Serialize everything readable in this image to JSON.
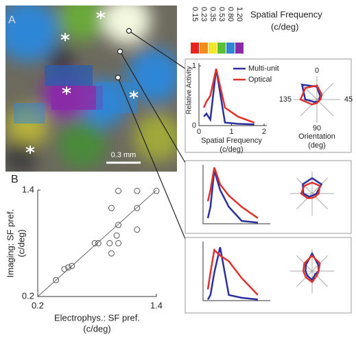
{
  "panel_a": {
    "label": "A",
    "scale_bar": "0.3 mm",
    "colorbar": {
      "title": [
        "Spatial Frequency",
        "(c/deg)"
      ],
      "items": [
        {
          "label": "0.15",
          "color": "#e8231e"
        },
        {
          "label": "0.23",
          "color": "#f28a1e"
        },
        {
          "label": "0.35",
          "color": "#f4e62a"
        },
        {
          "label": "0.53",
          "color": "#5cbf3a"
        },
        {
          "label": "0.80",
          "color": "#2f86d6"
        },
        {
          "label": "1.20",
          "color": "#8a2aa8"
        }
      ]
    }
  },
  "chart_data": [
    {
      "type": "line",
      "ylabel": "Relative Activity",
      "xlabel": [
        "Spatial Frequency",
        "(c/deg)"
      ],
      "x": [
        0.15,
        0.23,
        0.35,
        0.53,
        0.8,
        1.2,
        1.7
      ],
      "xlim": [
        0,
        2
      ],
      "ylim": [
        0,
        1
      ],
      "xticks": [
        0,
        1,
        2
      ],
      "yticks": [
        0,
        1
      ],
      "series": [
        {
          "name": "Multi-unit",
          "color": "#2b2f9e",
          "values": [
            0.15,
            0.2,
            0.1,
            0.95,
            0.05,
            0.03,
            0.02
          ]
        },
        {
          "name": "Optical",
          "color": "#e0302a",
          "values": [
            0.3,
            0.4,
            0.5,
            0.95,
            0.3,
            0.15,
            0.05
          ]
        }
      ]
    },
    {
      "type": "polar",
      "title": [
        "Orientation",
        "(deg)"
      ],
      "angles": [
        0,
        22.5,
        45,
        67.5,
        90,
        112.5,
        135,
        157.5
      ],
      "angleticks": [
        0,
        45,
        90,
        135
      ],
      "rlim": [
        0,
        1
      ],
      "series": [
        {
          "name": "Multi-unit",
          "color": "#2b2f9e",
          "values": [
            0.55,
            0.2,
            0.1,
            0.1,
            0.1,
            0.15,
            0.5,
            0.9
          ]
        },
        {
          "name": "Optical",
          "color": "#e0302a",
          "values": [
            0.6,
            0.3,
            0.15,
            0.1,
            0.15,
            0.3,
            0.7,
            0.7
          ]
        }
      ]
    },
    {
      "type": "line",
      "x": [
        0.15,
        0.23,
        0.35,
        0.53,
        0.8,
        1.2,
        1.7
      ],
      "xlim": [
        0,
        2
      ],
      "ylim": [
        0,
        1
      ],
      "series": [
        {
          "name": "Multi-unit",
          "color": "#2b2f9e",
          "values": [
            0.1,
            0.3,
            0.95,
            0.6,
            0.3,
            0.05,
            0.02
          ]
        },
        {
          "name": "Optical",
          "color": "#e0302a",
          "values": [
            0.4,
            0.6,
            1.0,
            0.7,
            0.5,
            0.3,
            0.1
          ]
        }
      ]
    },
    {
      "type": "polar",
      "angles": [
        0,
        22.5,
        45,
        67.5,
        90,
        112.5,
        135,
        157.5
      ],
      "rlim": [
        0,
        1
      ],
      "series": [
        {
          "name": "Multi-unit",
          "color": "#2b2f9e",
          "values": [
            0.7,
            0.6,
            0.2,
            0.1,
            0.1,
            0.2,
            0.4,
            0.6
          ]
        },
        {
          "name": "Optical",
          "color": "#e0302a",
          "values": [
            0.5,
            0.5,
            0.3,
            0.2,
            0.2,
            0.3,
            0.5,
            0.5
          ]
        }
      ]
    },
    {
      "type": "line",
      "x": [
        0.15,
        0.23,
        0.35,
        0.53,
        0.8,
        1.2,
        1.7
      ],
      "xlim": [
        0,
        2
      ],
      "ylim": [
        0,
        1
      ],
      "series": [
        {
          "name": "Multi-unit",
          "color": "#2b2f9e",
          "values": [
            0.02,
            0.1,
            0.5,
            0.95,
            0.1,
            0.05,
            0.02
          ]
        },
        {
          "name": "Optical",
          "color": "#e0302a",
          "values": [
            0.2,
            0.5,
            0.9,
            0.8,
            0.7,
            0.4,
            0.1
          ]
        }
      ]
    },
    {
      "type": "polar",
      "angles": [
        0,
        22.5,
        45,
        67.5,
        90,
        112.5,
        135,
        157.5
      ],
      "rlim": [
        0,
        1
      ],
      "series": [
        {
          "name": "Multi-unit",
          "color": "#2b2f9e",
          "values": [
            0.8,
            0.4,
            0.3,
            0.2,
            0.4,
            0.3,
            0.3,
            0.4
          ]
        },
        {
          "name": "Optical",
          "color": "#e0302a",
          "values": [
            0.7,
            0.5,
            0.3,
            0.3,
            0.5,
            0.4,
            0.4,
            0.5
          ]
        }
      ]
    },
    {
      "type": "scatter",
      "label": "B",
      "xlabel": [
        "Electrophys.: SF pref.",
        "(c/deg)"
      ],
      "ylabel": [
        "Imaging: SF pref.",
        "(c/deg)"
      ],
      "log_scale": true,
      "xlim": [
        0.2,
        1.4
      ],
      "ylim": [
        0.2,
        1.4
      ],
      "xticks": [
        0.2,
        1.4
      ],
      "yticks": [
        0.2,
        1.4
      ],
      "color": "#555555",
      "x": [
        0.27,
        0.31,
        0.33,
        0.35,
        0.51,
        0.54,
        0.67,
        0.65,
        0.75,
        0.73,
        0.75,
        0.67,
        0.75,
        1.02,
        1.02,
        1.02,
        1.4
      ],
      "values": [
        0.27,
        0.33,
        0.34,
        0.35,
        0.53,
        0.53,
        0.44,
        0.53,
        0.53,
        0.61,
        0.74,
        1.01,
        1.38,
        1.38,
        1.01,
        0.68,
        1.38
      ]
    }
  ]
}
